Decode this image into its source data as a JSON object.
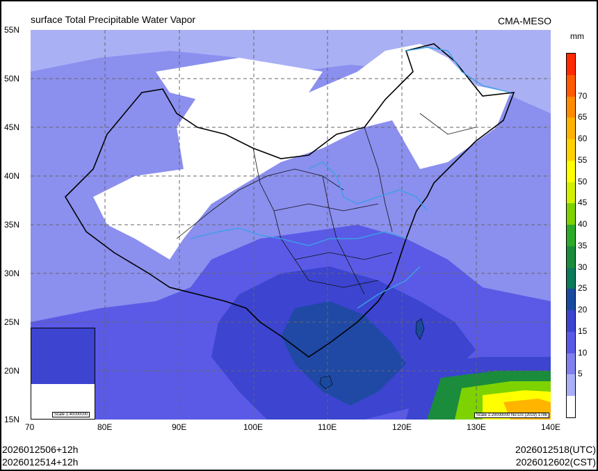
{
  "header": {
    "title": "surface Total Precipitable Water Vapor",
    "agency": "CMA-MESO"
  },
  "axes": {
    "lat_labels": [
      "55N",
      "50N",
      "45N",
      "40N",
      "35N",
      "30N",
      "25N",
      "20N",
      "15N"
    ],
    "lon_labels": [
      "70",
      "80E",
      "90E",
      "100E",
      "110E",
      "120E",
      "130E",
      "140E"
    ],
    "lat_range": [
      15,
      55
    ],
    "lon_range": [
      70,
      140
    ]
  },
  "colorbar": {
    "unit": "mm",
    "labels": [
      "70",
      "65",
      "60",
      "55",
      "50",
      "45",
      "40",
      "35",
      "30",
      "25",
      "20",
      "15",
      "10",
      "5"
    ],
    "colors": [
      "#ff2a00",
      "#ff5a00",
      "#ff8c00",
      "#ffb400",
      "#ffd200",
      "#ffff00",
      "#d2f000",
      "#7ed200",
      "#2eaa2a",
      "#1a8c3c",
      "#0d7a5a",
      "#1a4a9e",
      "#3c44d0",
      "#5a5ae6",
      "#8080ee",
      "#aab0f4",
      "#ffffff"
    ]
  },
  "inset": {
    "scale_label": "Scale 1:40000000"
  },
  "map_scale_label": "Scale 1:20000000 No:GS (2019) 1786",
  "footer": {
    "init_utc": "2026012506+12h",
    "init_cst": "2026012514+12h",
    "valid_utc": "2026012518(UTC)",
    "valid_cst": "2026012602(CST)"
  }
}
